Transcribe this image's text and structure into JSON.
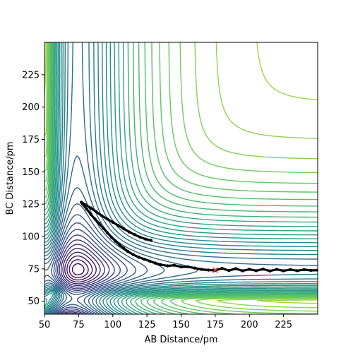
{
  "chart_data": {
    "type": "contour",
    "xlabel": "AB Distance/pm",
    "ylabel": "BC Distance/pm",
    "xlim": [
      50,
      250
    ],
    "ylim": [
      40,
      250
    ],
    "x_ticks": [
      50,
      75,
      100,
      125,
      150,
      175,
      200,
      225
    ],
    "y_ticks": [
      50,
      75,
      100,
      125,
      150,
      175,
      200,
      225
    ],
    "colormap": "viridis",
    "colormap_stops": [
      "#440154",
      "#3b528b",
      "#21918c",
      "#5ec962",
      "#fde725"
    ],
    "contour_levels": 40,
    "potential_model": {
      "well_depth": 1.0,
      "r_eq_AB": 74,
      "r_eq_BC": 74,
      "alpha": 0.03
    },
    "trajectory": {
      "color": "#000000",
      "points": [
        [
          128,
          97
        ],
        [
          124,
          98
        ],
        [
          120,
          99.5
        ],
        [
          116,
          101.5
        ],
        [
          112,
          103.5
        ],
        [
          108,
          106
        ],
        [
          104,
          108.5
        ],
        [
          100,
          111
        ],
        [
          96,
          113.5
        ],
        [
          92,
          116
        ],
        [
          88,
          119
        ],
        [
          84,
          122
        ],
        [
          80,
          124.5
        ],
        [
          77,
          126.5
        ],
        [
          78,
          125
        ],
        [
          81,
          121
        ],
        [
          84,
          117
        ],
        [
          87,
          113.5
        ],
        [
          90,
          110
        ],
        [
          93,
          106.5
        ],
        [
          96,
          103
        ],
        [
          99,
          99.5
        ],
        [
          102,
          96.5
        ],
        [
          105,
          93.5
        ],
        [
          108,
          91
        ],
        [
          111,
          88.5
        ],
        [
          115,
          86
        ],
        [
          119,
          84
        ],
        [
          123,
          82.5
        ],
        [
          127,
          81
        ],
        [
          131,
          79.5
        ],
        [
          135,
          78.3
        ],
        [
          140,
          77.3
        ],
        [
          145,
          77.8
        ],
        [
          150,
          76.5
        ],
        [
          155,
          76.6
        ],
        [
          160,
          75.6
        ],
        [
          165,
          74.6
        ],
        [
          170,
          74.1
        ],
        [
          175,
          73.8
        ],
        [
          180,
          75.4
        ],
        [
          185,
          73.7
        ],
        [
          190,
          75.1
        ],
        [
          195,
          73.5
        ],
        [
          200,
          74.7
        ],
        [
          205,
          73.6
        ],
        [
          210,
          74.8
        ],
        [
          215,
          73.4
        ],
        [
          220,
          74.6
        ],
        [
          225,
          73.5
        ],
        [
          230,
          74.5
        ],
        [
          235,
          73.6
        ],
        [
          240,
          74.4
        ],
        [
          245,
          73.8
        ],
        [
          250,
          74.0
        ]
      ]
    },
    "marker": {
      "symbol": "x",
      "x": 175,
      "y": 74,
      "color": "#e8332a"
    }
  }
}
